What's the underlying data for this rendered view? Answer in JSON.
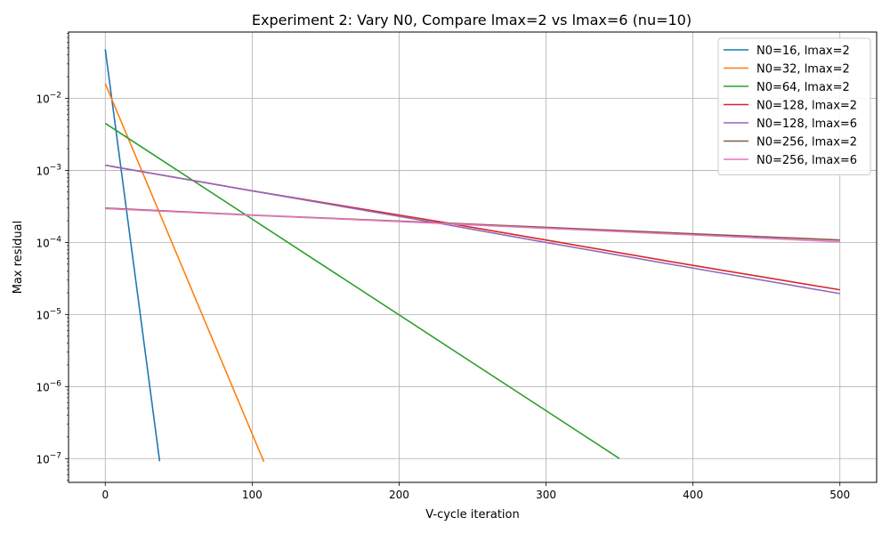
{
  "chart_data": {
    "type": "line",
    "title": "Experiment 2: Vary N0, Compare lmax=2 vs lmax=6 (nu=10)",
    "xlabel": "V-cycle iteration",
    "ylabel": "Max residual",
    "xlim": [
      -25,
      525
    ],
    "ylim_log10": [
      -7.33,
      -1.08
    ],
    "yscale": "log",
    "grid": true,
    "legend_position": "upper right",
    "xticks": [
      0,
      100,
      200,
      300,
      400,
      500
    ],
    "xtick_labels": [
      "0",
      "100",
      "200",
      "300",
      "400",
      "500"
    ],
    "ytick_exponents": [
      -7,
      -6,
      -5,
      -4,
      -3,
      -2
    ],
    "series": [
      {
        "name": "N0=16, lmax=2",
        "color": "#1f77b4",
        "x": [
          0,
          37
        ],
        "y": [
          0.048,
          9.2e-08
        ]
      },
      {
        "name": "N0=32, lmax=2",
        "color": "#ff7f0e",
        "x": [
          0,
          108
        ],
        "y": [
          0.016,
          9e-08
        ]
      },
      {
        "name": "N0=64, lmax=2",
        "color": "#2ca02c",
        "x": [
          0,
          350
        ],
        "y": [
          0.0045,
          1e-07
        ]
      },
      {
        "name": "N0=128, lmax=2",
        "color": "#d62728",
        "x": [
          0,
          100,
          200,
          230,
          300,
          400,
          500
        ],
        "y": [
          0.00118,
          0.00052,
          0.00024,
          0.00019,
          0.000108,
          4.8e-05,
          2.2e-05
        ]
      },
      {
        "name": "N0=128, lmax=6",
        "color": "#9467bd",
        "x": [
          0,
          100,
          200,
          230,
          300,
          400,
          500
        ],
        "y": [
          0.00118,
          0.00052,
          0.00023,
          0.00018,
          0.0001,
          4.4e-05,
          1.95e-05
        ]
      },
      {
        "name": "N0=256, lmax=2",
        "color": "#8c564b",
        "x": [
          0,
          100,
          200,
          300,
          400,
          500
        ],
        "y": [
          0.0003,
          0.00024,
          0.000198,
          0.000162,
          0.000132,
          0.000108
        ]
      },
      {
        "name": "N0=256, lmax=6",
        "color": "#e377c2",
        "x": [
          0,
          100,
          200,
          300,
          400,
          500
        ],
        "y": [
          0.000295,
          0.000238,
          0.000195,
          0.000157,
          0.000127,
          0.000102
        ]
      }
    ]
  }
}
